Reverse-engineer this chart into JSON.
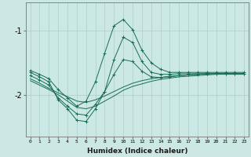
{
  "title": "",
  "xlabel": "Humidex (Indice chaleur)",
  "ylabel": "",
  "bg_color": "#cce8e4",
  "line_color": "#1a6b5a",
  "grid_color": "#aacfcb",
  "xlim": [
    -0.5,
    23.5
  ],
  "ylim": [
    -2.65,
    -0.55
  ],
  "yticks": [
    -2,
    -1
  ],
  "xticks": [
    0,
    1,
    2,
    3,
    4,
    5,
    6,
    7,
    8,
    9,
    10,
    11,
    12,
    13,
    14,
    15,
    16,
    17,
    18,
    19,
    20,
    21,
    22,
    23
  ],
  "line1_x": [
    0,
    1,
    2,
    3,
    4,
    5,
    6,
    7,
    8,
    9,
    10,
    11,
    12,
    13,
    14,
    15,
    16,
    17,
    18,
    19,
    20,
    21,
    22,
    23
  ],
  "line1_y": [
    -1.75,
    -1.82,
    -1.9,
    -1.97,
    -2.03,
    -2.1,
    -2.12,
    -2.08,
    -2.02,
    -1.95,
    -1.88,
    -1.82,
    -1.78,
    -1.75,
    -1.73,
    -1.71,
    -1.7,
    -1.69,
    -1.68,
    -1.67,
    -1.67,
    -1.67,
    -1.67,
    -1.67
  ],
  "line2_x": [
    0,
    1,
    2,
    3,
    4,
    5,
    6,
    7,
    8,
    9,
    10,
    11,
    12,
    13,
    14,
    15,
    16,
    17,
    18,
    19,
    20,
    21,
    22,
    23
  ],
  "line2_y": [
    -1.78,
    -1.85,
    -1.92,
    -2.0,
    -2.1,
    -2.2,
    -2.22,
    -2.18,
    -2.1,
    -2.02,
    -1.93,
    -1.87,
    -1.83,
    -1.79,
    -1.76,
    -1.74,
    -1.72,
    -1.71,
    -1.7,
    -1.69,
    -1.68,
    -1.68,
    -1.68,
    -1.68
  ],
  "line3_x": [
    0,
    1,
    2,
    3,
    4,
    5,
    6,
    7,
    8,
    9,
    10,
    11,
    12,
    13,
    14,
    15,
    16,
    17,
    18,
    19,
    20,
    21,
    22,
    23
  ],
  "line3_y": [
    -1.7,
    -1.77,
    -1.85,
    -2.05,
    -2.18,
    -2.3,
    -2.32,
    -2.15,
    -1.95,
    -1.68,
    -1.45,
    -1.48,
    -1.63,
    -1.72,
    -1.73,
    -1.72,
    -1.7,
    -1.69,
    -1.68,
    -1.67,
    -1.67,
    -1.67,
    -1.67,
    -1.67
  ],
  "line4_x": [
    0,
    1,
    2,
    3,
    4,
    5,
    6,
    7,
    8,
    9,
    10,
    11,
    12,
    13,
    14,
    15,
    16,
    17,
    18,
    19,
    20,
    21,
    22,
    23
  ],
  "line4_y": [
    -1.65,
    -1.72,
    -1.8,
    -2.08,
    -2.22,
    -2.4,
    -2.42,
    -2.22,
    -1.95,
    -1.45,
    -1.1,
    -1.18,
    -1.48,
    -1.65,
    -1.68,
    -1.68,
    -1.67,
    -1.67,
    -1.67,
    -1.67,
    -1.67,
    -1.67,
    -1.67,
    -1.67
  ],
  "line5_x": [
    0,
    1,
    2,
    3,
    4,
    5,
    6,
    7,
    8,
    9,
    10,
    11,
    12,
    13,
    14,
    15,
    16,
    17,
    18,
    19,
    20,
    21,
    22,
    23
  ],
  "line5_y": [
    -1.62,
    -1.68,
    -1.75,
    -1.92,
    -2.05,
    -2.18,
    -2.1,
    -1.8,
    -1.35,
    -0.92,
    -0.82,
    -0.98,
    -1.3,
    -1.5,
    -1.6,
    -1.65,
    -1.65,
    -1.65,
    -1.65,
    -1.65,
    -1.65,
    -1.65,
    -1.65,
    -1.65
  ],
  "markers_from_line": 3
}
